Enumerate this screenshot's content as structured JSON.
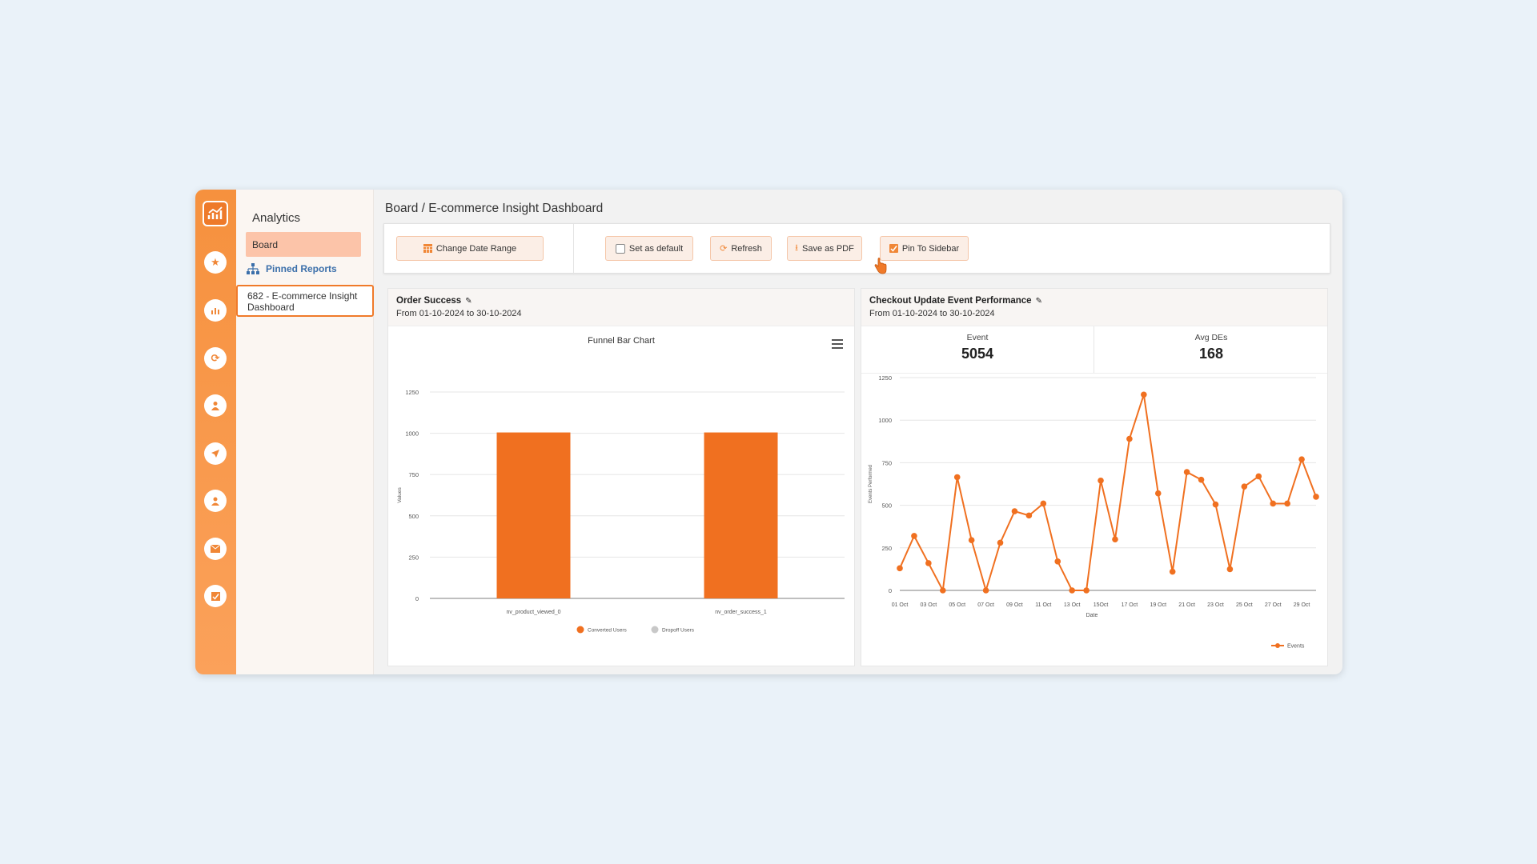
{
  "sidebar": {
    "title": "Analytics",
    "board_label": "Board",
    "pinned_label": "Pinned Reports",
    "report_label": "682 - E-commerce Insight Dashboard"
  },
  "rail_icons": [
    "analytics-logo-icon",
    "star-icon",
    "bar-chart-icon",
    "refresh-icon",
    "user-icon",
    "send-icon",
    "user-sync-icon",
    "mail-icon",
    "checklist-icon"
  ],
  "breadcrumb": "Board / E-commerce Insight Dashboard",
  "toolbar": {
    "change_date": "Change Date Range",
    "set_default": "Set as default",
    "refresh": "Refresh",
    "save_pdf": "Save as PDF",
    "pin_sidebar": "Pin To Sidebar"
  },
  "colors": {
    "accent": "#f07a2a",
    "bar": "#f07020",
    "grey": "#c8c8c8"
  },
  "card1": {
    "title": "Order Success",
    "date": "From 01-10-2024 to 30-10-2024"
  },
  "card2": {
    "title": "Checkout Update Event Performance",
    "date": "From 01-10-2024 to 30-10-2024",
    "stats": [
      {
        "label": "Event",
        "value": "5054"
      },
      {
        "label": "Avg DEs",
        "value": "168"
      }
    ]
  },
  "chart_data": [
    {
      "type": "bar",
      "title": "Funnel Bar Chart",
      "ylabel": "Values",
      "ylim": [
        0,
        1250
      ],
      "yticks": [
        0,
        250,
        500,
        750,
        1000,
        1250
      ],
      "categories": [
        "nv_product_viewed_0",
        "nv_order_success_1"
      ],
      "series": [
        {
          "name": "Converted Users",
          "values": [
            1005,
            1005
          ]
        },
        {
          "name": "Dropoff Users",
          "values": [
            0,
            0
          ]
        }
      ],
      "legend": "bottom"
    },
    {
      "type": "line",
      "xlabel": "Date",
      "ylabel": "Events Performed",
      "ylim": [
        0,
        1250
      ],
      "yticks": [
        0,
        250,
        500,
        750,
        1000,
        1250
      ],
      "xtick_labels": [
        "01 Oct",
        "03 Oct",
        "05 Oct",
        "07 Oct",
        "09 Oct",
        "11 Oct",
        "13 Oct",
        "15Oct",
        "17 Oct",
        "19 Oct",
        "21 Oct",
        "23 Oct",
        "25 Oct",
        "27 Oct",
        "29 Oct"
      ],
      "x": [
        "01 Oct",
        "02 Oct",
        "03 Oct",
        "04 Oct",
        "05 Oct",
        "06 Oct",
        "07 Oct",
        "08 Oct",
        "09 Oct",
        "10 Oct",
        "11 Oct",
        "12 Oct",
        "13 Oct",
        "14 Oct",
        "15 Oct",
        "16 Oct",
        "17 Oct",
        "18 Oct",
        "19 Oct",
        "20 Oct",
        "21 Oct",
        "22 Oct",
        "23 Oct",
        "24 Oct",
        "25 Oct",
        "26 Oct",
        "27 Oct",
        "28 Oct",
        "29 Oct",
        "30 Oct"
      ],
      "series": [
        {
          "name": "Events",
          "values": [
            130,
            320,
            160,
            0,
            665,
            295,
            0,
            280,
            465,
            440,
            510,
            170,
            0,
            0,
            645,
            300,
            890,
            1150,
            570,
            110,
            695,
            650,
            505,
            125,
            610,
            670,
            510,
            510,
            770,
            550
          ]
        }
      ],
      "legend": "bottom-right"
    }
  ]
}
